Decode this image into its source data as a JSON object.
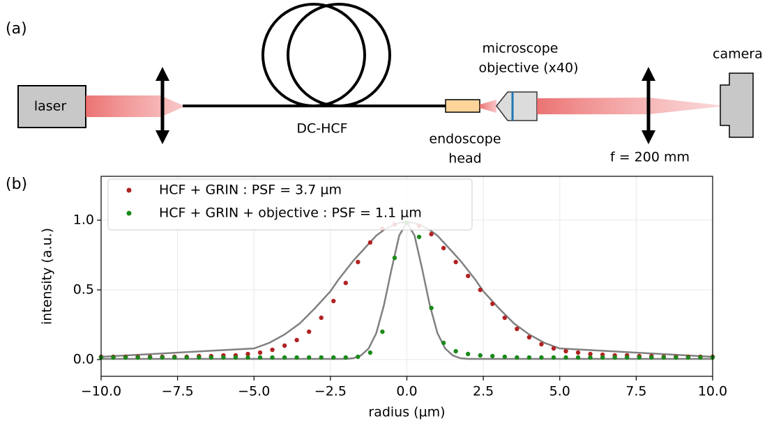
{
  "diagram": {
    "panel_a": "(a)",
    "laser": "laser",
    "fiber": "DC-HCF",
    "objective": [
      "microscope",
      "objective (x40)"
    ],
    "endoscope": [
      "endoscope",
      "head"
    ],
    "camera": "camera",
    "lens": "f = 200 mm"
  },
  "chart_data": {
    "type": "scatter",
    "panel": "(b)",
    "x_label": "radius (µm)",
    "y_label": "intensity (a.u.)",
    "xlim": [
      -10,
      10
    ],
    "ylim": [
      -0.12,
      1.315
    ],
    "xticks": [
      {
        "value": -10,
        "label": "−10.0"
      },
      {
        "value": -7.5,
        "label": "−7.5"
      },
      {
        "value": -5,
        "label": "−5.0"
      },
      {
        "value": -2.5,
        "label": "−2.5"
      },
      {
        "value": 0,
        "label": "0.0"
      },
      {
        "value": 2.5,
        "label": "2.5"
      },
      {
        "value": 5,
        "label": "5.0"
      },
      {
        "value": 7.5,
        "label": "7.5"
      },
      {
        "value": 10,
        "label": "10.0"
      }
    ],
    "yticks": [
      {
        "value": 0,
        "label": "0.0"
      },
      {
        "value": 0.5,
        "label": "0.5"
      },
      {
        "value": 1,
        "label": "1.0"
      }
    ],
    "grid": true,
    "legend": "upper left",
    "x": [
      -10,
      -9.6,
      -9.2,
      -8.8,
      -8.4,
      -8,
      -7.6,
      -7.2,
      -6.8,
      -6.4,
      -6,
      -5.6,
      -5.2,
      -4.8,
      -4.4,
      -4,
      -3.6,
      -3.2,
      -2.8,
      -2.4,
      -2,
      -1.6,
      -1.2,
      -0.8,
      -0.4,
      0,
      0.4,
      0.8,
      1.2,
      1.6,
      2,
      2.4,
      2.8,
      3.2,
      3.6,
      4,
      4.4,
      4.8,
      5.2,
      5.6,
      6,
      6.4,
      6.8,
      7.2,
      7.6,
      8,
      8.4,
      8.8,
      9.2,
      9.6,
      10
    ],
    "series": [
      {
        "name": "HCF + GRIN : PSF = 3.7 µm",
        "color": "#b22222",
        "values": [
          0.02,
          0.02,
          0.02,
          0.02,
          0.02,
          0.02,
          0.02,
          0.02,
          0.025,
          0.025,
          0.03,
          0.03,
          0.04,
          0.05,
          0.07,
          0.1,
          0.14,
          0.2,
          0.3,
          0.42,
          0.55,
          0.7,
          0.84,
          0.94,
          0.97,
          0.98,
          0.96,
          0.9,
          0.8,
          0.7,
          0.6,
          0.5,
          0.4,
          0.3,
          0.22,
          0.16,
          0.11,
          0.08,
          0.06,
          0.05,
          0.04,
          0.035,
          0.03,
          0.03,
          0.025,
          0.025,
          0.02,
          0.02,
          0.02,
          0.02,
          0.02
        ]
      },
      {
        "name": "HCF + GRIN + objective : PSF = 1.1 µm",
        "color": "#1a8a1a",
        "values": [
          0.015,
          0.015,
          0.015,
          0.015,
          0.015,
          0.015,
          0.015,
          0.015,
          0.015,
          0.015,
          0.015,
          0.015,
          0.015,
          0.015,
          0.015,
          0.015,
          0.015,
          0.015,
          0.015,
          0.015,
          0.015,
          0.02,
          0.05,
          0.2,
          0.73,
          0.98,
          0.88,
          0.37,
          0.12,
          0.06,
          0.04,
          0.03,
          0.025,
          0.02,
          0.015,
          0.015,
          0.015,
          0.015,
          0.015,
          0.015,
          0.015,
          0.015,
          0.015,
          0.015,
          0.015,
          0.015,
          0.015,
          0.015,
          0.015,
          0.015,
          0.015
        ]
      }
    ],
    "fit_x": [
      -10,
      -5,
      -4.5,
      -4,
      -3.5,
      -3,
      -2.75,
      -2.5,
      -2.25,
      -2,
      -1.75,
      -1.5,
      -1.25,
      -1,
      -0.75,
      -0.5,
      -0.25,
      0,
      0.25,
      0.5,
      0.75,
      1,
      1.25,
      1.5,
      1.75,
      2,
      2.25,
      2.5,
      2.75,
      3,
      3.5,
      4,
      4.5,
      5,
      10
    ],
    "fits": [
      {
        "color": "#808080",
        "values": [
          0.02,
          0.08,
          0.12,
          0.18,
          0.26,
          0.37,
          0.43,
          0.49,
          0.57,
          0.64,
          0.71,
          0.77,
          0.83,
          0.89,
          0.93,
          0.96,
          0.98,
          0.99,
          0.98,
          0.96,
          0.93,
          0.89,
          0.83,
          0.77,
          0.71,
          0.64,
          0.57,
          0.49,
          0.43,
          0.37,
          0.26,
          0.18,
          0.12,
          0.08,
          0.02
        ]
      },
      {
        "color": "#808080",
        "values": [
          0.005,
          0.005,
          0.005,
          0.005,
          0.005,
          0.005,
          0.005,
          0.005,
          0.005,
          0.005,
          0.01,
          0.03,
          0.08,
          0.19,
          0.39,
          0.65,
          0.89,
          0.985,
          0.89,
          0.65,
          0.39,
          0.19,
          0.08,
          0.03,
          0.01,
          0.005,
          0.005,
          0.005,
          0.005,
          0.005,
          0.005,
          0.005,
          0.005,
          0.005,
          0.005
        ]
      }
    ]
  }
}
